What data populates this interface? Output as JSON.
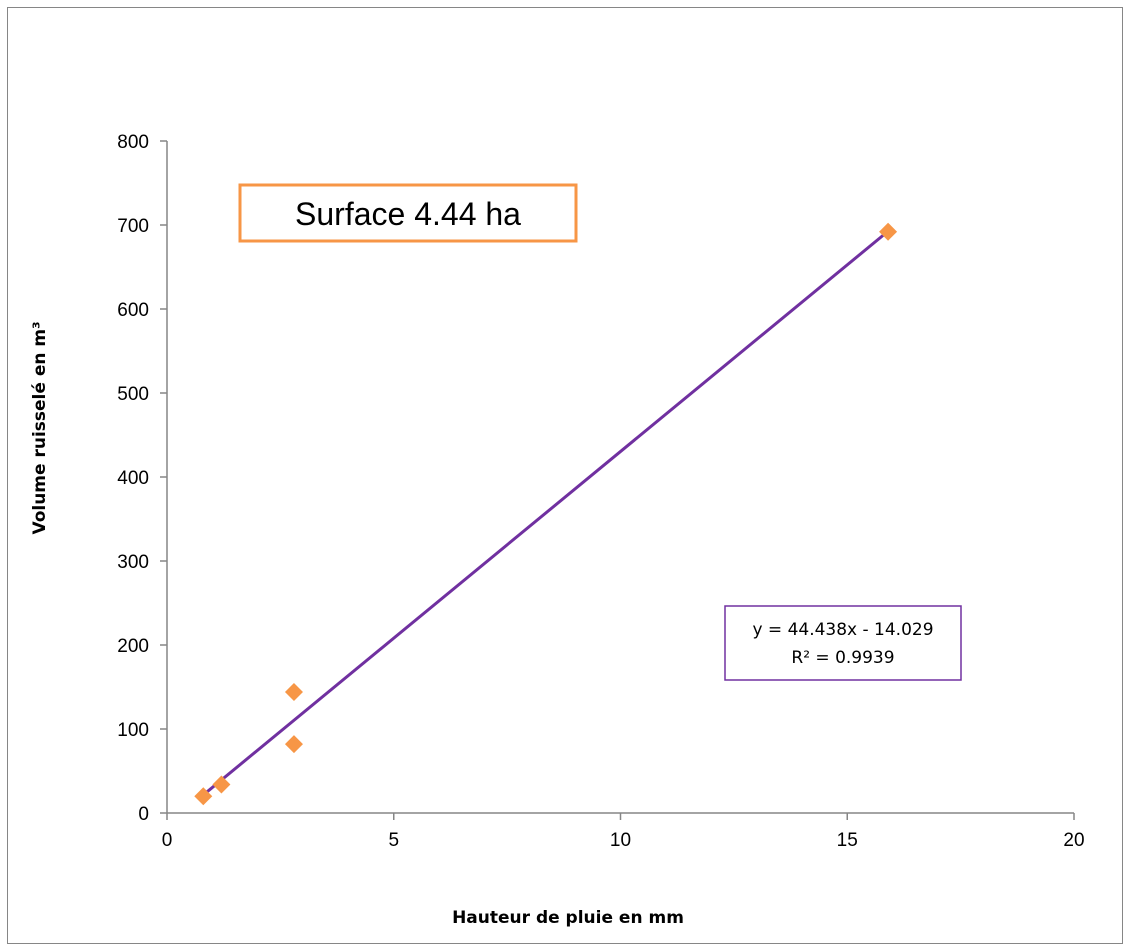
{
  "chart_data": {
    "type": "scatter",
    "title": "",
    "xlabel": "Hauteur de pluie en mm",
    "ylabel": "Volume ruisselé en m³",
    "xlim": [
      0,
      20
    ],
    "ylim": [
      0,
      800
    ],
    "x_ticks": [
      "0",
      "5",
      "10",
      "15",
      "20"
    ],
    "y_ticks": [
      "0",
      "100",
      "200",
      "300",
      "400",
      "500",
      "600",
      "700",
      "800"
    ],
    "grid": false,
    "legend": "none",
    "annotation": "Surface 4.44 ha",
    "series": [
      {
        "marker": "diamond",
        "color": "#F79646",
        "points": [
          {
            "x": 0.8,
            "y": 20
          },
          {
            "x": 1.2,
            "y": 34
          },
          {
            "x": 2.8,
            "y": 82
          },
          {
            "x": 2.8,
            "y": 144
          },
          {
            "x": 15.9,
            "y": 692
          }
        ]
      }
    ],
    "trendline": {
      "type": "linear",
      "color": "#7030A0",
      "slope": 44.438,
      "intercept": -14.029,
      "x_range": [
        0.8,
        15.9
      ],
      "equation_label": "y = 44.438x - 14.029",
      "r2_label": "R² = 0.9939"
    }
  }
}
